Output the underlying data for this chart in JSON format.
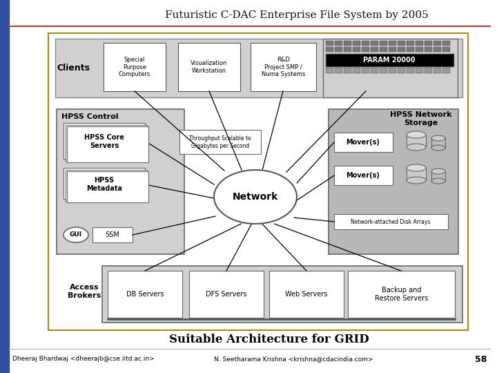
{
  "title": "Futuristic C-DAC Enterprise File System by 2005",
  "subtitle": "Suitable Architecture for GRID",
  "footer_left": "Dheeraj Bhardwaj <dheerajb@cse.iitd.ac.in>",
  "footer_right": "N. Seetharama Krishna <krishna@cdacindia.com>",
  "footer_page": "58",
  "bg_color": "#ffffff",
  "left_bar_color": "#2e4fa3",
  "title_color": "#000000",
  "title_line_color": "#c0392b",
  "outer_box_color": "#c8a000",
  "clients_label": "Clients",
  "hpss_control_label": "HPSS Control",
  "hpss_network_label": "HPSS Network\nStorage",
  "access_brokers_label": "Access\nBrokers",
  "client_boxes": [
    "Special\nPurpose\nComputers",
    "Visualization\nWorkstation",
    "R&D\nProject SMP /\nNuma Systems"
  ],
  "param_label": "PARAM 20000",
  "hpss_core_label": "HPSS Core\nServers",
  "hpss_metadata_label": "HPSS\nMetadata",
  "gui_label": "GUI",
  "ssm_label": "SSM",
  "network_label": "Network",
  "throughput_label": "Throughput Scalable to\nGigabytes per Second",
  "movers": [
    "Mover(s)",
    "Mover(s)"
  ],
  "nas_label": "Network-attached Disk Arrays",
  "access_boxes": [
    "DB Servers",
    "DFS Servers",
    "Web Servers",
    "Backup and\nRestore Servers"
  ],
  "gray_light": "#d0d0d0",
  "gray_medium": "#b8b8b8",
  "box_fill": "#e8e8e8",
  "network_fill": "#f8f8f8"
}
